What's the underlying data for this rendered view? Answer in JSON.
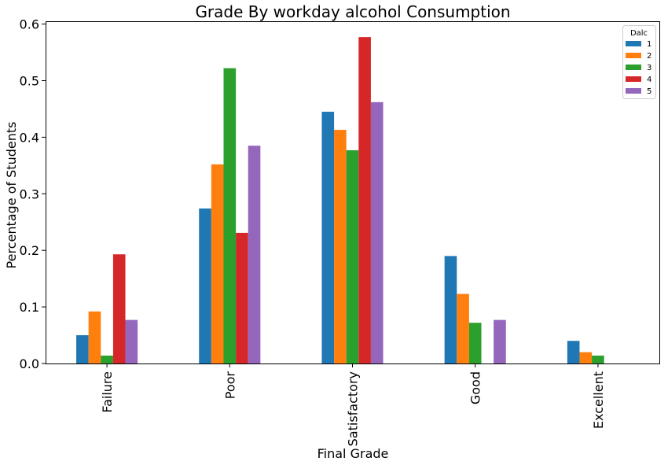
{
  "chart_data": {
    "type": "bar",
    "title": "Grade By workday alcohol Consumption",
    "xlabel": "Final Grade",
    "ylabel": "Percentage of Students",
    "categories": [
      "Failure",
      "Poor",
      "Satisfactory",
      "Good",
      "Excellent"
    ],
    "ylim": [
      0,
      0.605
    ],
    "yticks": [
      "0.0",
      "0.1",
      "0.2",
      "0.3",
      "0.4",
      "0.5",
      "0.6"
    ],
    "ytick_values": [
      0.0,
      0.1,
      0.2,
      0.3,
      0.4,
      0.5,
      0.6
    ],
    "legend": {
      "title": "Dalc",
      "placement": "top-right"
    },
    "grid": false,
    "series": [
      {
        "name": "1",
        "color": "#1f77b4",
        "values": [
          0.05,
          0.274,
          0.445,
          0.19,
          0.04
        ]
      },
      {
        "name": "2",
        "color": "#ff7f0e",
        "values": [
          0.092,
          0.352,
          0.413,
          0.123,
          0.02
        ]
      },
      {
        "name": "3",
        "color": "#2ca02c",
        "values": [
          0.014,
          0.522,
          0.377,
          0.072,
          0.014
        ]
      },
      {
        "name": "4",
        "color": "#d62728",
        "values": [
          0.193,
          0.231,
          0.577,
          0.0,
          0.0
        ]
      },
      {
        "name": "5",
        "color": "#9467bd",
        "values": [
          0.077,
          0.385,
          0.462,
          0.077,
          0.0
        ]
      }
    ]
  }
}
